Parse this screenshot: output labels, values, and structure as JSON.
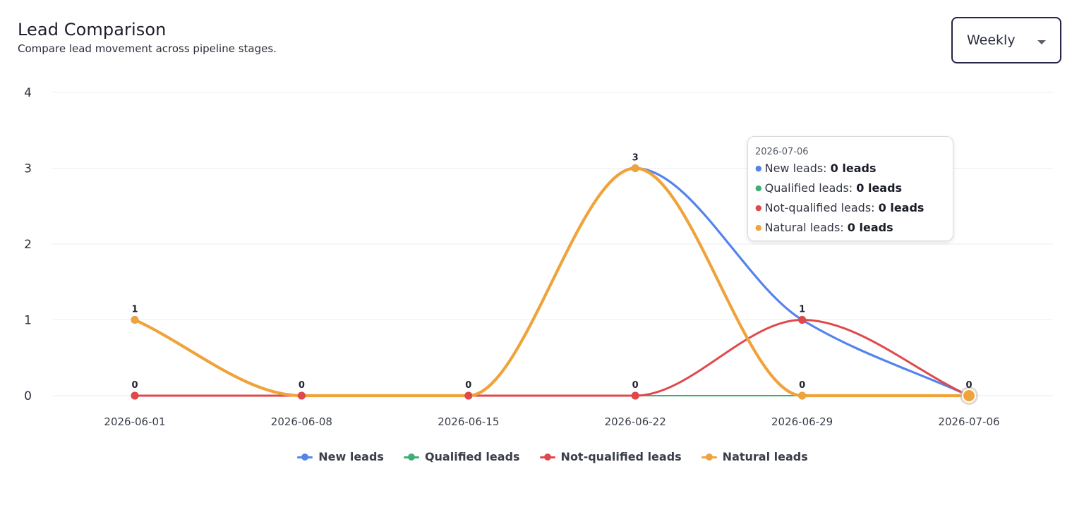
{
  "header": {
    "title": "Lead Comparison",
    "subtitle": "Compare lead movement across pipeline stages."
  },
  "period_select": {
    "value": "Weekly"
  },
  "tooltip": {
    "date": "2026-07-06",
    "rows": [
      {
        "label": "New leads: ",
        "value": "0 leads",
        "color": "#5383ec"
      },
      {
        "label": "Qualified leads: ",
        "value": "0 leads",
        "color": "#3fae73"
      },
      {
        "label": "Not-qualified leads: ",
        "value": "0 leads",
        "color": "#e0494b"
      },
      {
        "label": "Natural leads: ",
        "value": "0 leads",
        "color": "#efa33a"
      }
    ]
  },
  "chart_data": {
    "type": "line",
    "title": "Lead Comparison",
    "subtitle": "Compare lead movement across pipeline stages.",
    "x": [
      "2026-06-01",
      "2026-06-08",
      "2026-06-15",
      "2026-06-22",
      "2026-06-29",
      "2026-07-06"
    ],
    "ylim": [
      0,
      4
    ],
    "yticks": [
      0,
      1,
      2,
      3,
      4
    ],
    "grid": true,
    "legend_position": "bottom",
    "series": [
      {
        "name": "New leads",
        "color": "#5383ec",
        "values": [
          1,
          0,
          0,
          3,
          1,
          0
        ]
      },
      {
        "name": "Qualified leads",
        "color": "#3fae73",
        "values": [
          0,
          0,
          0,
          0,
          0,
          0
        ]
      },
      {
        "name": "Not-qualified leads",
        "color": "#e0494b",
        "values": [
          0,
          0,
          0,
          0,
          1,
          0
        ]
      },
      {
        "name": "Natural leads",
        "color": "#efa33a",
        "values": [
          1,
          0,
          0,
          3,
          0,
          0
        ]
      }
    ],
    "data_labels": [
      "1",
      "0",
      "0",
      "3",
      "1",
      "0"
    ],
    "zero_labels": [
      "0",
      "0",
      "0",
      "0",
      "0"
    ],
    "highlighted_point": {
      "x": "2026-07-06"
    }
  }
}
